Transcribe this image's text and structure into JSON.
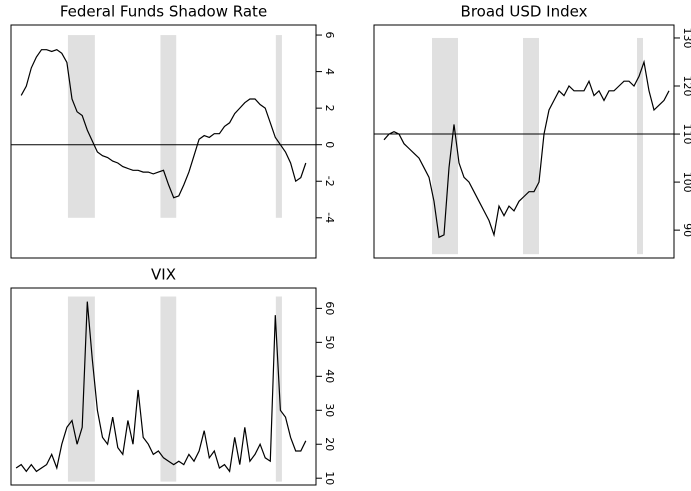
{
  "chart_data": [
    {
      "type": "line",
      "title": "Federal Funds Shadow Rate",
      "values": [
        null,
        null,
        2.7,
        3.2,
        4.2,
        4.8,
        5.2,
        5.2,
        5.1,
        5.2,
        5.0,
        4.5,
        2.5,
        1.8,
        1.6,
        0.8,
        0.2,
        -0.4,
        -0.6,
        -0.7,
        -0.9,
        -1.0,
        -1.2,
        -1.3,
        -1.4,
        -1.4,
        -1.5,
        -1.5,
        -1.6,
        -1.5,
        -1.4,
        -2.2,
        -2.9,
        -2.8,
        -2.2,
        -1.5,
        -0.6,
        0.3,
        0.5,
        0.4,
        0.6,
        0.6,
        1.0,
        1.2,
        1.7,
        2.0,
        2.3,
        2.5,
        2.5,
        2.2,
        2.0,
        1.2,
        0.4,
        0.0,
        -0.4,
        -1.0,
        -2.0,
        -1.8,
        -1.0,
        null,
        null
      ],
      "color": "#000000",
      "xlim": [
        0,
        60
      ],
      "ylim": [
        -6.2,
        6.55
      ],
      "yticks": [
        -4,
        -2,
        0,
        2,
        4,
        6
      ],
      "hline": 0,
      "shaded": [
        [
          11.2,
          16.5
        ],
        [
          29.4,
          32.5
        ],
        [
          52.1,
          53.3
        ]
      ],
      "shade_span": [
        -4,
        6
      ]
    },
    {
      "type": "line",
      "title": "Broad USD Index",
      "values": [
        null,
        null,
        108.8,
        110,
        110.5,
        110,
        108,
        107,
        106,
        105,
        103,
        101,
        96,
        88.5,
        89,
        103,
        112,
        104,
        101,
        100,
        98,
        96,
        94,
        92,
        89,
        95,
        93,
        95,
        94,
        96,
        97,
        98,
        98,
        100,
        110,
        115,
        117,
        119,
        118,
        120,
        119,
        119,
        119,
        121,
        118,
        119,
        117,
        119,
        119,
        120,
        121,
        121,
        120,
        122,
        125,
        119,
        115,
        116,
        117,
        119,
        null
      ],
      "color": "#000000",
      "xlim": [
        0,
        60
      ],
      "ylim": [
        84.2,
        132.7
      ],
      "yticks": [
        90,
        100,
        110,
        120,
        130
      ],
      "hline": 110,
      "shaded": [
        [
          11.6,
          16.8
        ],
        [
          29.8,
          33
        ],
        [
          52.6,
          53.8
        ]
      ],
      "shade_span": [
        85,
        130
      ]
    },
    {
      "type": "line",
      "title": "VIX",
      "values": [
        null,
        13,
        14,
        12,
        14,
        12,
        13,
        14,
        17,
        13,
        20,
        25,
        27,
        20,
        25,
        62,
        45,
        30,
        22,
        20,
        28,
        19,
        17,
        27,
        20,
        36,
        22,
        20,
        17,
        18,
        16,
        15,
        14,
        15,
        14,
        17,
        15,
        18,
        24,
        16,
        18,
        13,
        14,
        12,
        22,
        14,
        25,
        15,
        17,
        20,
        16,
        15,
        58,
        30,
        28,
        22,
        18,
        18,
        21,
        null,
        null
      ],
      "color": "#000000",
      "xlim": [
        0,
        60
      ],
      "ylim": [
        8,
        66
      ],
      "yticks": [
        10,
        20,
        30,
        40,
        50,
        60
      ],
      "shaded": [
        [
          11.2,
          16.5
        ],
        [
          29.4,
          32.5
        ],
        [
          52.1,
          53.3
        ]
      ],
      "shade_span": [
        9,
        63.5
      ]
    }
  ]
}
